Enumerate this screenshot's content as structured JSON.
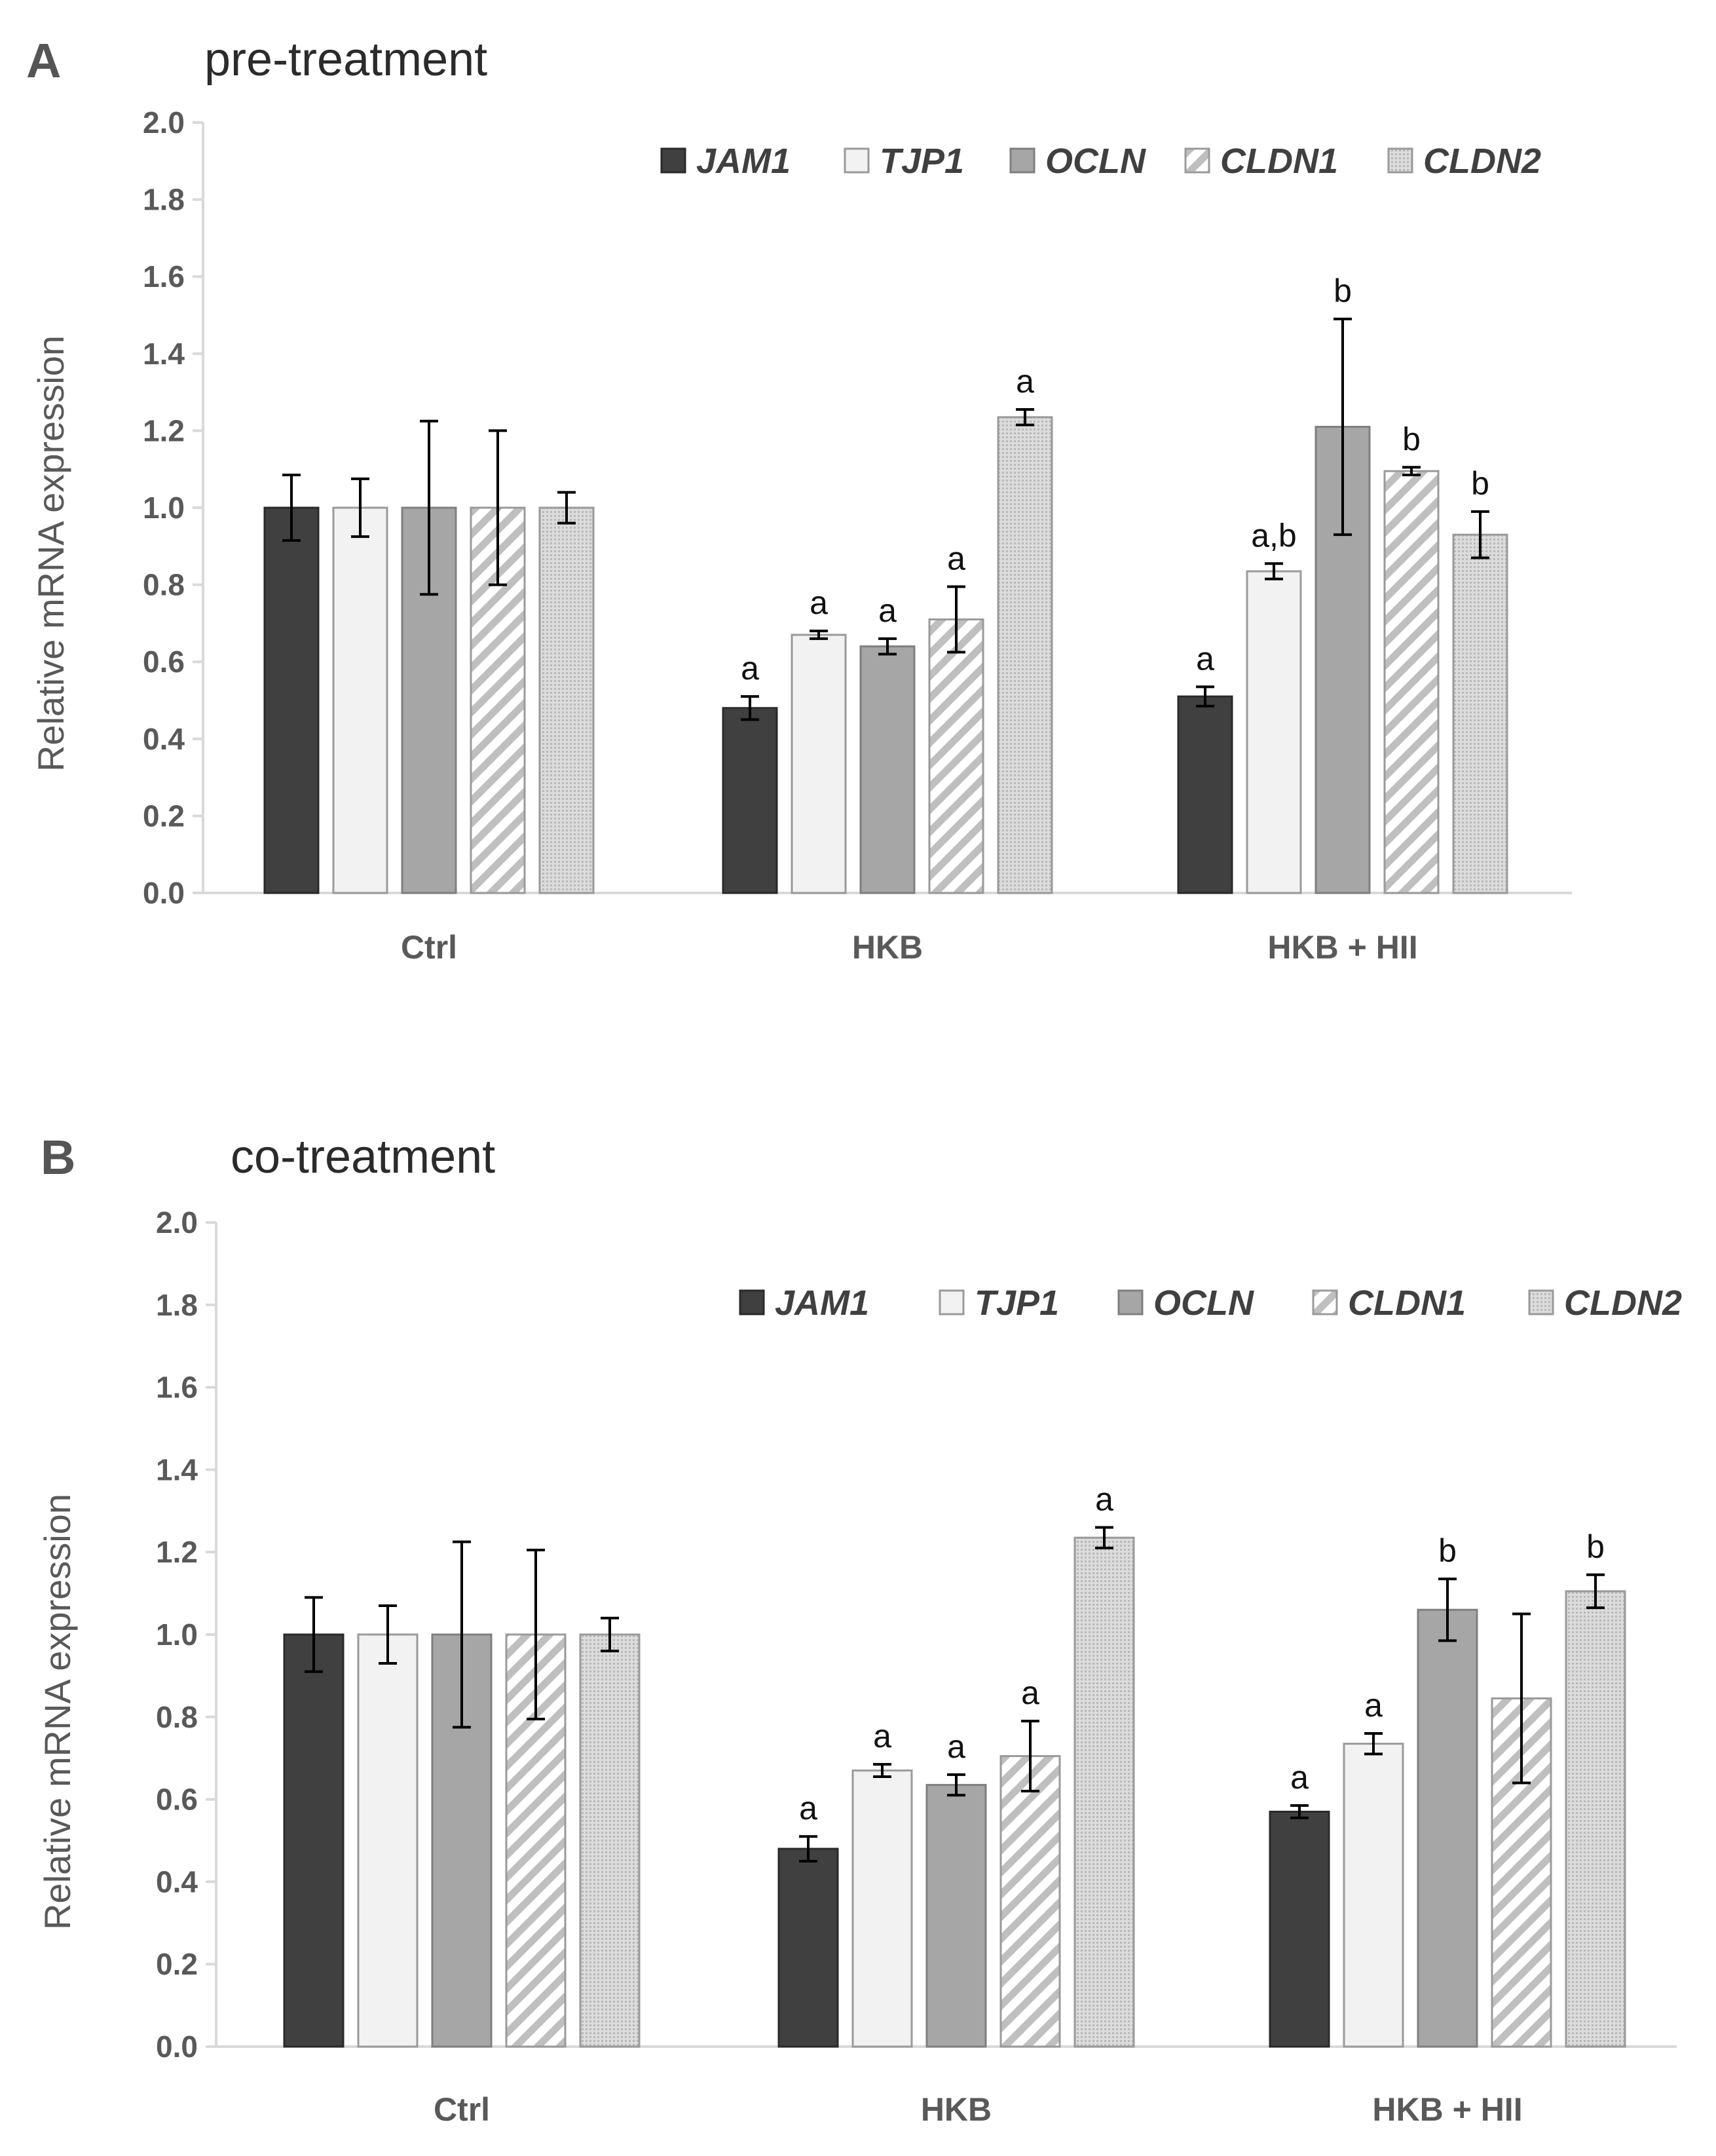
{
  "colors": {
    "JAM1": "#404040",
    "TJP1": "#f2f2f2",
    "OCLN": "#a6a6a6",
    "CLDN1": "#ffffff",
    "CLDN2": "#d2d2d2",
    "axis": "#d9d9d9",
    "errorbar": "#000000"
  },
  "chart_data": [
    {
      "panel": "A",
      "type": "bar",
      "title": "pre-treatment",
      "xlabel": "",
      "ylabel": "Relative mRNA expression",
      "ylim": [
        0,
        2.0
      ],
      "yticks": [
        "0.0",
        "0.2",
        "0.4",
        "0.6",
        "0.8",
        "1.0",
        "1.2",
        "1.4",
        "1.6",
        "1.8",
        "2.0"
      ],
      "grid": false,
      "legend": "top-right",
      "categories": [
        "Ctrl",
        "HKB",
        "HKB + HII"
      ],
      "series": [
        {
          "name": "JAM1",
          "pattern": "solid-dark",
          "values": [
            1.0,
            0.48,
            0.51
          ],
          "errors": [
            0.085,
            0.03,
            0.025
          ],
          "labels": [
            "",
            "a",
            "a"
          ]
        },
        {
          "name": "TJP1",
          "pattern": "solid-white",
          "values": [
            1.0,
            0.67,
            0.835
          ],
          "errors": [
            0.075,
            0.01,
            0.02
          ],
          "labels": [
            "",
            "a",
            "a,b"
          ]
        },
        {
          "name": "OCLN",
          "pattern": "solid-gray",
          "values": [
            1.0,
            0.64,
            1.21
          ],
          "errors": [
            0.225,
            0.02,
            0.28
          ],
          "labels": [
            "",
            "a",
            "b"
          ]
        },
        {
          "name": "CLDN1",
          "pattern": "diagonal-stripe",
          "values": [
            1.0,
            0.71,
            1.095
          ],
          "errors": [
            0.2,
            0.085,
            0.01
          ],
          "labels": [
            "",
            "a",
            "b"
          ]
        },
        {
          "name": "CLDN2",
          "pattern": "dotted-gray",
          "values": [
            1.0,
            1.235,
            0.93
          ],
          "errors": [
            0.04,
            0.02,
            0.06
          ],
          "labels": [
            "",
            "a",
            "b"
          ]
        }
      ]
    },
    {
      "panel": "B",
      "type": "bar",
      "title": "co-treatment",
      "xlabel": "",
      "ylabel": "Relative mRNA expression",
      "ylim": [
        0,
        2.0
      ],
      "yticks": [
        "0.0",
        "0.2",
        "0.4",
        "0.6",
        "0.8",
        "1.0",
        "1.2",
        "1.4",
        "1.6",
        "1.8",
        "2.0"
      ],
      "grid": false,
      "legend": "top-right",
      "categories": [
        "Ctrl",
        "HKB",
        "HKB + HII"
      ],
      "series": [
        {
          "name": "JAM1",
          "pattern": "solid-dark",
          "values": [
            1.0,
            0.48,
            0.57
          ],
          "errors": [
            0.09,
            0.03,
            0.015
          ],
          "labels": [
            "",
            "a",
            "a"
          ]
        },
        {
          "name": "TJP1",
          "pattern": "solid-white",
          "values": [
            1.0,
            0.67,
            0.735
          ],
          "errors": [
            0.07,
            0.015,
            0.025
          ],
          "labels": [
            "",
            "a",
            "a"
          ]
        },
        {
          "name": "OCLN",
          "pattern": "solid-gray",
          "values": [
            1.0,
            0.635,
            1.06
          ],
          "errors": [
            0.225,
            0.025,
            0.075
          ],
          "labels": [
            "",
            "a",
            "b"
          ]
        },
        {
          "name": "CLDN1",
          "pattern": "diagonal-stripe",
          "values": [
            1.0,
            0.705,
            0.845
          ],
          "errors": [
            0.205,
            0.085,
            0.205
          ],
          "labels": [
            "",
            "a",
            ""
          ]
        },
        {
          "name": "CLDN2",
          "pattern": "dotted-gray",
          "values": [
            1.0,
            1.235,
            1.105
          ],
          "errors": [
            0.04,
            0.025,
            0.04
          ],
          "labels": [
            "",
            "a",
            "b"
          ]
        }
      ]
    }
  ]
}
